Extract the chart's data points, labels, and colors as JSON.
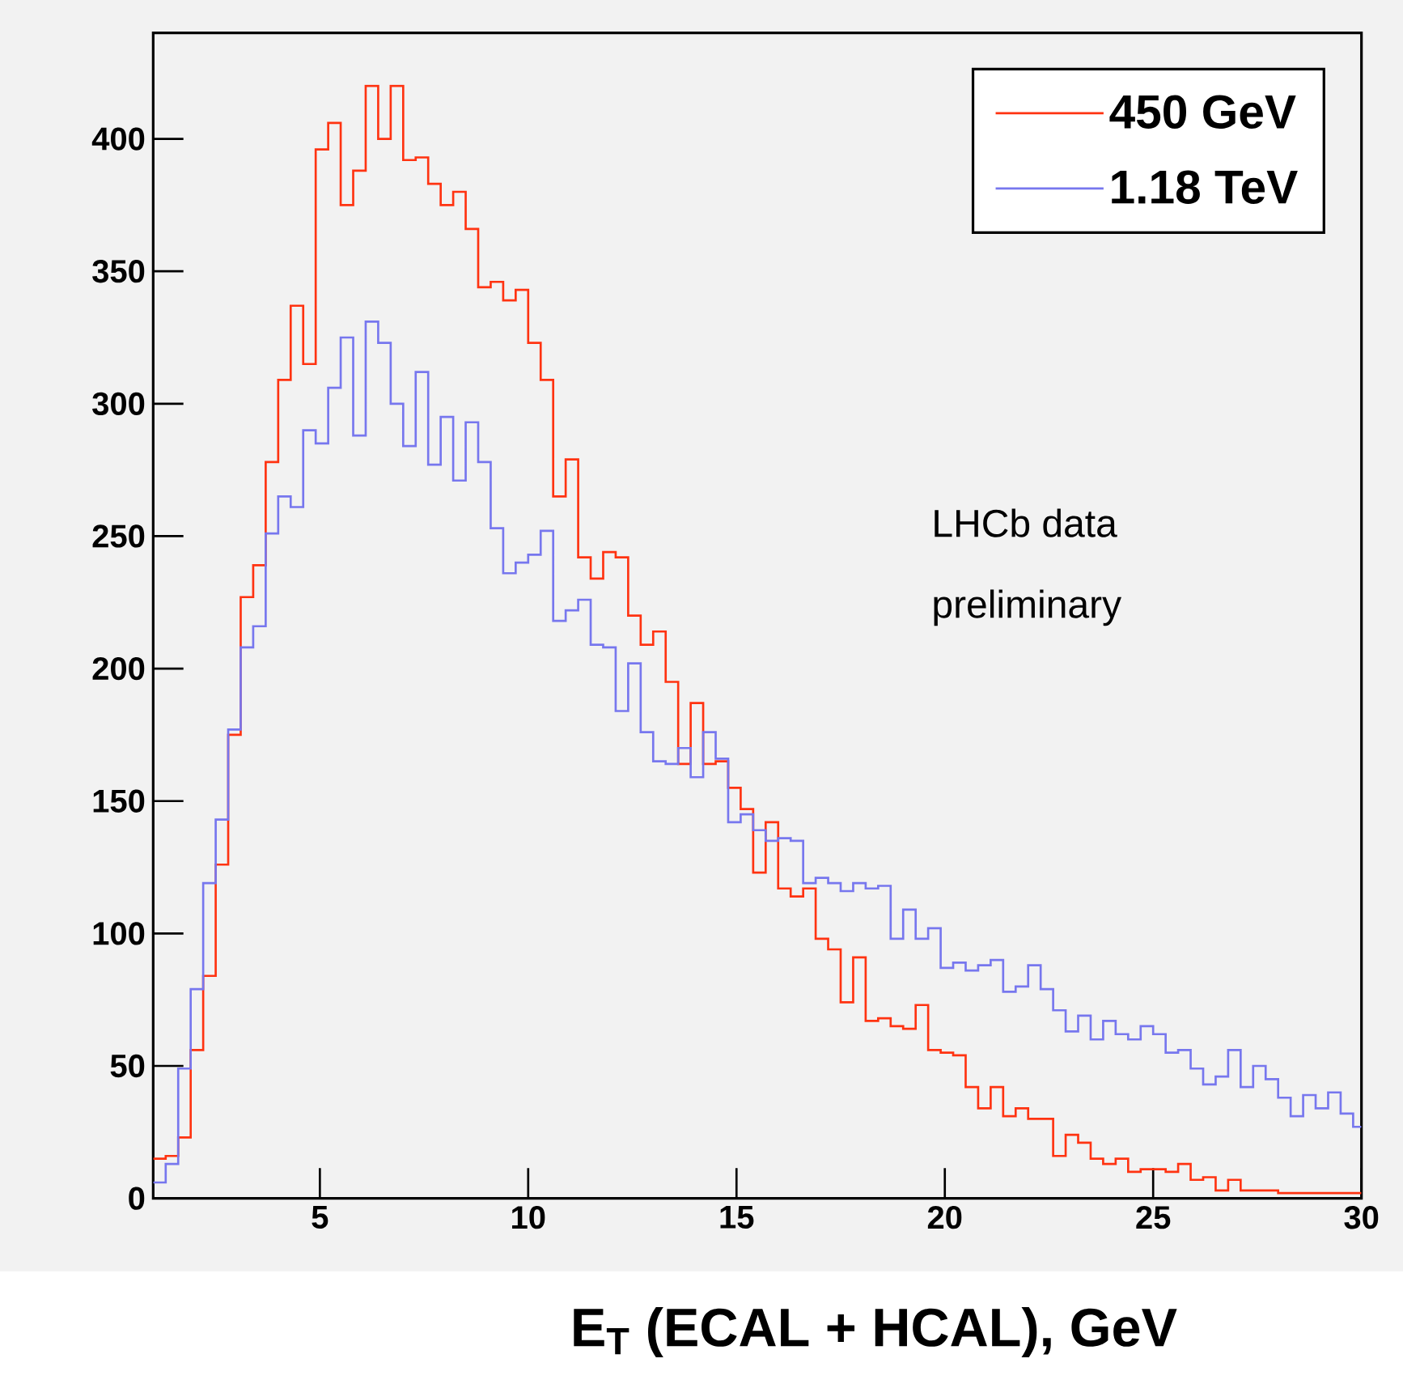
{
  "chart_data": {
    "type": "histogram",
    "xlabel": "E$_{T}$ (ECAL + HCAL), GeV",
    "bins": [
      1.0,
      1.3,
      1.6,
      1.9,
      2.2,
      2.5,
      2.8,
      3.1,
      3.4,
      3.7,
      4.0,
      4.3,
      4.6,
      4.9,
      5.2,
      5.5,
      5.8,
      6.1,
      6.4,
      6.7,
      7.0,
      7.3,
      7.6,
      7.9,
      8.2,
      8.5,
      8.8,
      9.1,
      9.4,
      9.7,
      10.0,
      10.3,
      10.6,
      10.9,
      11.2,
      11.5,
      11.8,
      12.1,
      12.4,
      12.7,
      13.0,
      13.3,
      13.6,
      13.9,
      14.2,
      14.5,
      14.8,
      15.1,
      15.4,
      15.7,
      16.0,
      16.3,
      16.6,
      16.9,
      17.2,
      17.5,
      17.8,
      18.1,
      18.4,
      18.7,
      19.0,
      19.3,
      19.6,
      19.9,
      20.2,
      20.5,
      20.8,
      21.1,
      21.4,
      21.7,
      22.0,
      22.3,
      22.6,
      22.9,
      23.2,
      23.5,
      23.8,
      24.1,
      24.4,
      24.7,
      25.0,
      25.3,
      25.6,
      25.9,
      26.2,
      26.5,
      26.8,
      27.1,
      27.4,
      27.7,
      28.0,
      28.3,
      28.6,
      28.9,
      29.2,
      29.5,
      29.8,
      30.0
    ],
    "series": [
      {
        "name": "450 GeV",
        "color": "#ff3311",
        "values": [
          15,
          16,
          23,
          56,
          84,
          126,
          175,
          227,
          239,
          278,
          309,
          337,
          315,
          396,
          406,
          375,
          388,
          420,
          400,
          420,
          392,
          393,
          383,
          375,
          380,
          366,
          344,
          346,
          339,
          343,
          323,
          309,
          265,
          279,
          242,
          234,
          244,
          242,
          220,
          209,
          214,
          195,
          164,
          187,
          164,
          165,
          155,
          147,
          123,
          142,
          117,
          114,
          117,
          98,
          94,
          74,
          91,
          67,
          68,
          65,
          64,
          73,
          56,
          55,
          54,
          42,
          34,
          42,
          31,
          34,
          30,
          30,
          16,
          24,
          21,
          15,
          13,
          15,
          10,
          11,
          11,
          10,
          13,
          7,
          8,
          3,
          7,
          3,
          3,
          3,
          2,
          2,
          2,
          2,
          2,
          2,
          2
        ]
      },
      {
        "name": "1.18 TeV",
        "color": "#7777ee",
        "values": [
          6,
          13,
          49,
          79,
          119,
          143,
          177,
          208,
          216,
          251,
          265,
          261,
          290,
          285,
          306,
          325,
          288,
          331,
          323,
          300,
          284,
          312,
          277,
          295,
          271,
          293,
          278,
          253,
          236,
          240,
          243,
          252,
          218,
          222,
          226,
          209,
          208,
          184,
          202,
          176,
          165,
          164,
          170,
          159,
          176,
          166,
          142,
          145,
          139,
          135,
          136,
          135,
          119,
          121,
          119,
          116,
          119,
          117,
          118,
          98,
          109,
          98,
          102,
          87,
          89,
          86,
          88,
          90,
          78,
          80,
          88,
          79,
          71,
          63,
          69,
          60,
          67,
          62,
          60,
          65,
          62,
          55,
          56,
          49,
          43,
          46,
          56,
          42,
          50,
          45,
          38,
          31,
          39,
          34,
          40,
          32,
          27
        ]
      }
    ],
    "xlim": [
      1,
      30
    ],
    "ylim": [
      0,
      440
    ],
    "xticks": [
      5,
      10,
      15,
      20,
      25,
      30
    ],
    "yticks": [
      0,
      50,
      100,
      150,
      200,
      250,
      300,
      350,
      400
    ],
    "legend": "top right",
    "annotations": [
      "LHCb data",
      "preliminary"
    ]
  }
}
